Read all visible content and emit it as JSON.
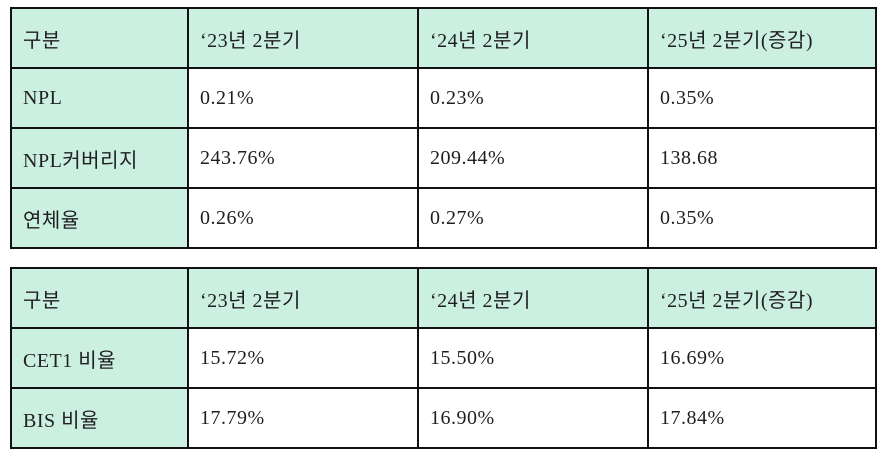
{
  "colors": {
    "cell_green": "#cbefe0",
    "border": "#111111",
    "text": "#1f1f1f",
    "background": "#ffffff"
  },
  "tables": [
    {
      "headers": [
        "구분",
        "‘23년 2분기",
        "‘24년 2분기",
        "‘25년 2분기(증감)"
      ],
      "rows": [
        {
          "label": "NPL",
          "values": [
            "0.21%",
            "0.23%",
            "0.35%"
          ]
        },
        {
          "label": "NPL커버리지",
          "values": [
            "243.76%",
            "209.44%",
            "138.68"
          ]
        },
        {
          "label": "연체율",
          "values": [
            "0.26%",
            "0.27%",
            "0.35%"
          ]
        }
      ]
    },
    {
      "headers": [
        "구분",
        "‘23년 2분기",
        "‘24년 2분기",
        "‘25년 2분기(증감)"
      ],
      "rows": [
        {
          "label": "CET1 비율",
          "values": [
            "15.72%",
            "15.50%",
            "16.69%"
          ]
        },
        {
          "label": "BIS 비율",
          "values": [
            "17.79%",
            "16.90%",
            "17.84%"
          ]
        }
      ]
    }
  ]
}
